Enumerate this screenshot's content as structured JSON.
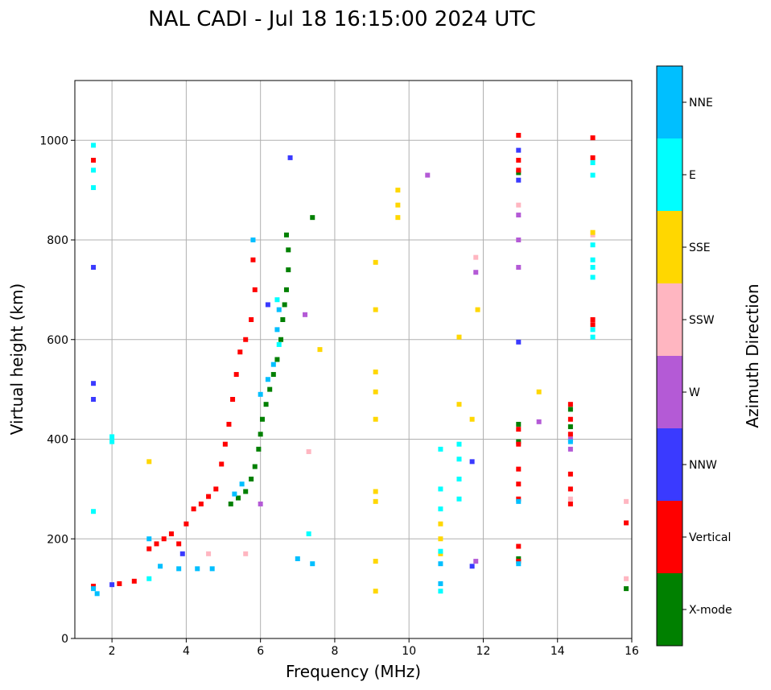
{
  "chart_data": {
    "type": "scatter",
    "title": "NAL CADI - Jul 18 16:15:00 2024 UTC",
    "xlabel": "Frequency (MHz)",
    "ylabel": "Virtual height (km)",
    "xlim": [
      1,
      16
    ],
    "ylim": [
      0,
      1120
    ],
    "xticks": [
      2,
      4,
      6,
      8,
      10,
      12,
      14,
      16
    ],
    "yticks": [
      0,
      200,
      400,
      600,
      800,
      1000
    ],
    "grid": true,
    "colorbar": {
      "label": "Azimuth Direction",
      "categories": [
        {
          "name": "X-mode",
          "color": "#008000"
        },
        {
          "name": "Vertical",
          "color": "#ff0000"
        },
        {
          "name": "NNW",
          "color": "#3a3aff"
        },
        {
          "name": "W",
          "color": "#b45ad6"
        },
        {
          "name": "SSW",
          "color": "#ffb6c1"
        },
        {
          "name": "SSE",
          "color": "#ffd700"
        },
        {
          "name": "E",
          "color": "#00ffff"
        },
        {
          "name": "NNE",
          "color": "#00bfff"
        }
      ]
    },
    "series": [
      {
        "name": "X-mode",
        "points": [
          [
            5.2,
            270
          ],
          [
            5.4,
            282
          ],
          [
            5.6,
            295
          ],
          [
            5.75,
            320
          ],
          [
            5.85,
            345
          ],
          [
            5.95,
            380
          ],
          [
            6.0,
            410
          ],
          [
            6.05,
            440
          ],
          [
            6.15,
            470
          ],
          [
            6.25,
            500
          ],
          [
            6.35,
            530
          ],
          [
            6.45,
            560
          ],
          [
            6.55,
            600
          ],
          [
            6.6,
            640
          ],
          [
            6.65,
            670
          ],
          [
            6.7,
            700
          ],
          [
            6.75,
            740
          ],
          [
            6.75,
            780
          ],
          [
            6.7,
            810
          ],
          [
            7.4,
            845
          ],
          [
            12.95,
            160
          ],
          [
            12.95,
            395
          ],
          [
            12.95,
            430
          ],
          [
            12.95,
            935
          ],
          [
            14.35,
            425
          ],
          [
            14.35,
            460
          ],
          [
            15.85,
            100
          ]
        ]
      },
      {
        "name": "Vertical",
        "points": [
          [
            1.5,
            105
          ],
          [
            1.5,
            960
          ],
          [
            2.2,
            110
          ],
          [
            2.6,
            115
          ],
          [
            3.0,
            180
          ],
          [
            3.2,
            190
          ],
          [
            3.4,
            200
          ],
          [
            3.6,
            210
          ],
          [
            3.8,
            190
          ],
          [
            4.0,
            230
          ],
          [
            4.2,
            260
          ],
          [
            4.4,
            270
          ],
          [
            4.6,
            285
          ],
          [
            4.8,
            300
          ],
          [
            4.95,
            350
          ],
          [
            5.05,
            390
          ],
          [
            5.15,
            430
          ],
          [
            5.25,
            480
          ],
          [
            5.35,
            530
          ],
          [
            5.45,
            575
          ],
          [
            5.6,
            600
          ],
          [
            5.75,
            640
          ],
          [
            5.85,
            700
          ],
          [
            5.8,
            760
          ],
          [
            12.95,
            155
          ],
          [
            12.95,
            185
          ],
          [
            12.95,
            280
          ],
          [
            12.95,
            310
          ],
          [
            12.95,
            340
          ],
          [
            12.95,
            390
          ],
          [
            12.95,
            420
          ],
          [
            12.95,
            940
          ],
          [
            12.95,
            960
          ],
          [
            12.95,
            1010
          ],
          [
            14.35,
            270
          ],
          [
            14.35,
            300
          ],
          [
            14.35,
            330
          ],
          [
            14.35,
            410
          ],
          [
            14.35,
            440
          ],
          [
            14.35,
            470
          ],
          [
            14.95,
            630
          ],
          [
            14.95,
            640
          ],
          [
            14.95,
            965
          ],
          [
            14.95,
            1005
          ],
          [
            15.85,
            232
          ]
        ]
      },
      {
        "name": "NNW",
        "points": [
          [
            1.5,
            480
          ],
          [
            1.5,
            512
          ],
          [
            1.5,
            745
          ],
          [
            2.0,
            108
          ],
          [
            3.9,
            170
          ],
          [
            6.2,
            670
          ],
          [
            6.8,
            965
          ],
          [
            11.7,
            355
          ],
          [
            11.7,
            145
          ],
          [
            12.95,
            595
          ],
          [
            12.95,
            980
          ],
          [
            12.95,
            920
          ]
        ]
      },
      {
        "name": "W",
        "points": [
          [
            6.0,
            270
          ],
          [
            7.2,
            650
          ],
          [
            10.5,
            930
          ],
          [
            11.8,
            155
          ],
          [
            11.8,
            735
          ],
          [
            12.95,
            745
          ],
          [
            12.95,
            800
          ],
          [
            12.95,
            850
          ],
          [
            14.35,
            400
          ],
          [
            14.35,
            380
          ],
          [
            13.5,
            435
          ]
        ]
      },
      {
        "name": "SSW",
        "points": [
          [
            4.6,
            170
          ],
          [
            5.6,
            170
          ],
          [
            7.3,
            375
          ],
          [
            11.8,
            765
          ],
          [
            12.95,
            870
          ],
          [
            14.35,
            280
          ],
          [
            14.95,
            810
          ],
          [
            15.85,
            275
          ],
          [
            15.85,
            120
          ]
        ]
      },
      {
        "name": "SSE",
        "points": [
          [
            3.0,
            355
          ],
          [
            7.6,
            580
          ],
          [
            9.1,
            95
          ],
          [
            9.1,
            155
          ],
          [
            9.1,
            275
          ],
          [
            9.1,
            295
          ],
          [
            9.1,
            440
          ],
          [
            9.1,
            495
          ],
          [
            9.1,
            535
          ],
          [
            9.1,
            660
          ],
          [
            9.1,
            755
          ],
          [
            9.7,
            845
          ],
          [
            9.7,
            870
          ],
          [
            9.7,
            900
          ],
          [
            10.85,
            170
          ],
          [
            10.85,
            200
          ],
          [
            10.85,
            230
          ],
          [
            11.35,
            470
          ],
          [
            11.35,
            605
          ],
          [
            11.7,
            440
          ],
          [
            11.85,
            660
          ],
          [
            13.5,
            495
          ],
          [
            14.95,
            815
          ]
        ]
      },
      {
        "name": "E",
        "points": [
          [
            1.5,
            905
          ],
          [
            1.5,
            940
          ],
          [
            1.5,
            990
          ],
          [
            1.5,
            255
          ],
          [
            2.0,
            405
          ],
          [
            2.0,
            395
          ],
          [
            3.0,
            120
          ],
          [
            6.45,
            680
          ],
          [
            6.5,
            590
          ],
          [
            7.3,
            210
          ],
          [
            10.85,
            95
          ],
          [
            10.85,
            175
          ],
          [
            10.85,
            260
          ],
          [
            10.85,
            300
          ],
          [
            10.85,
            380
          ],
          [
            11.35,
            280
          ],
          [
            11.35,
            320
          ],
          [
            11.35,
            360
          ],
          [
            11.35,
            390
          ],
          [
            14.95,
            605
          ],
          [
            14.95,
            620
          ],
          [
            14.95,
            725
          ],
          [
            14.95,
            745
          ],
          [
            14.95,
            760
          ],
          [
            14.95,
            790
          ],
          [
            14.95,
            930
          ],
          [
            14.95,
            955
          ]
        ]
      },
      {
        "name": "NNE",
        "points": [
          [
            1.5,
            100
          ],
          [
            1.6,
            90
          ],
          [
            3.0,
            200
          ],
          [
            3.3,
            145
          ],
          [
            3.8,
            140
          ],
          [
            4.3,
            140
          ],
          [
            4.7,
            140
          ],
          [
            5.3,
            290
          ],
          [
            5.5,
            310
          ],
          [
            5.8,
            800
          ],
          [
            6.0,
            490
          ],
          [
            6.2,
            520
          ],
          [
            6.35,
            550
          ],
          [
            6.45,
            620
          ],
          [
            6.5,
            660
          ],
          [
            7.0,
            160
          ],
          [
            7.4,
            150
          ],
          [
            10.85,
            110
          ],
          [
            10.85,
            150
          ],
          [
            12.95,
            150
          ],
          [
            12.95,
            275
          ],
          [
            14.35,
            395
          ]
        ]
      }
    ]
  }
}
